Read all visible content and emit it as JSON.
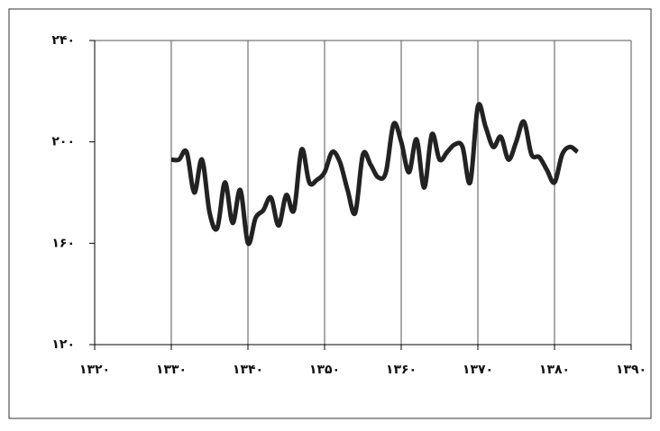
{
  "chart_data": {
    "type": "line",
    "x": [
      1330,
      1331,
      1332,
      1333,
      1334,
      1335,
      1336,
      1337,
      1338,
      1339,
      1340,
      1341,
      1342,
      1343,
      1344,
      1345,
      1346,
      1347,
      1348,
      1349,
      1350,
      1351,
      1352,
      1353,
      1354,
      1355,
      1356,
      1357,
      1358,
      1359,
      1360,
      1361,
      1362,
      1363,
      1364,
      1365,
      1366,
      1367,
      1368,
      1369,
      1370,
      1371,
      1372,
      1373,
      1374,
      1375,
      1376,
      1377,
      1378,
      1379,
      1380,
      1381,
      1382,
      1383
    ],
    "values": [
      193,
      193,
      196,
      180,
      193,
      172,
      166,
      184,
      168,
      181,
      160,
      170,
      173,
      178,
      167,
      179,
      173,
      197,
      184,
      185,
      188,
      196,
      192,
      181,
      172,
      195,
      191,
      186,
      188,
      207,
      200,
      188,
      201,
      182,
      203,
      193,
      196,
      199,
      198,
      184,
      214,
      206,
      198,
      202,
      193,
      200,
      208,
      195,
      194,
      189,
      184,
      195,
      198,
      196
    ],
    "color": "#222222",
    "xlim": [
      1320,
      1390
    ],
    "xticks": [
      {
        "value": 1320,
        "label": "۱۳۲۰"
      },
      {
        "value": 1330,
        "label": "۱۳۳۰"
      },
      {
        "value": 1340,
        "label": "۱۳۴۰"
      },
      {
        "value": 1350,
        "label": "۱۳۵۰"
      },
      {
        "value": 1360,
        "label": "۱۳۶۰"
      },
      {
        "value": 1370,
        "label": "۱۳۷۰"
      },
      {
        "value": 1380,
        "label": "۱۳۸۰"
      },
      {
        "value": 1390,
        "label": "۱۳۹۰"
      }
    ],
    "ylim": [
      120,
      240
    ],
    "yticks": [
      {
        "value": 120,
        "label": "۱۲۰"
      },
      {
        "value": 160,
        "label": "۱۶۰"
      },
      {
        "value": 200,
        "label": "۲۰۰"
      },
      {
        "value": 240,
        "label": "۲۴۰"
      }
    ],
    "grid": true
  }
}
